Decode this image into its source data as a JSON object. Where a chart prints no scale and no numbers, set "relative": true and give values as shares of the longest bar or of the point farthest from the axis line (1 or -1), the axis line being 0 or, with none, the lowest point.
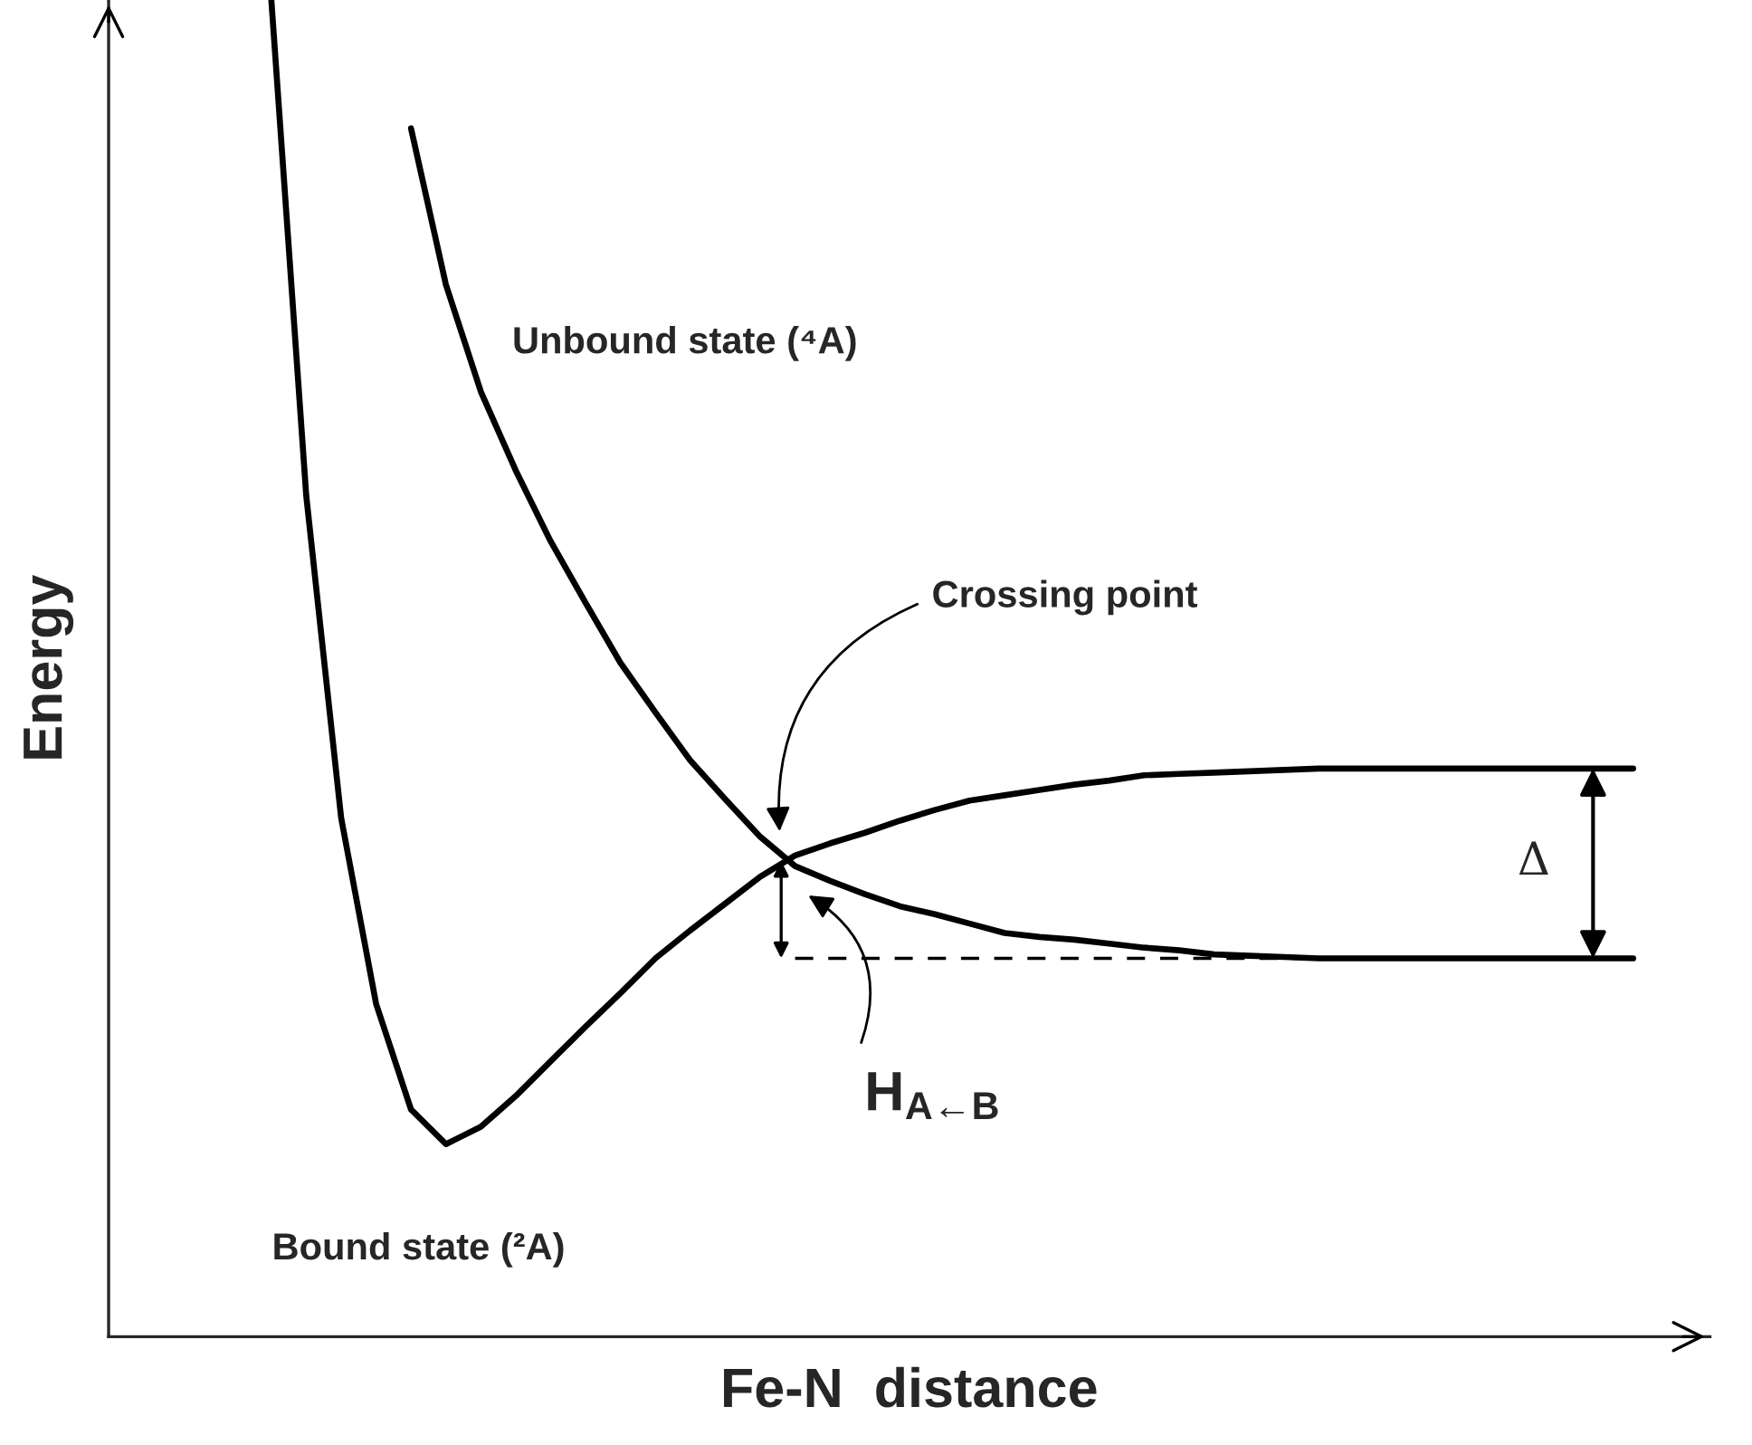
{
  "chart_data": {
    "type": "line",
    "relative": true,
    "xlabel": "Fe-N  distance",
    "ylabel": "Energy",
    "tick_labels": false,
    "marker": "none",
    "categories": [
      null,
      null,
      null,
      null,
      null,
      null,
      null,
      null,
      null,
      null,
      null,
      null,
      null,
      null,
      null,
      null,
      null,
      null,
      null,
      null,
      null,
      null,
      null,
      null,
      null,
      null,
      null,
      null,
      null,
      null,
      null,
      null,
      null,
      null,
      null,
      null,
      null,
      null,
      null,
      null
    ],
    "series": [
      {
        "color": "#000000",
        "line_style": "solid",
        "values": [
          1.0,
          0.629,
          0.388,
          0.249,
          0.17,
          0.144,
          0.157,
          0.18,
          0.206,
          0.232,
          0.257,
          0.283,
          0.304,
          0.324,
          0.344,
          0.36,
          0.369,
          0.377,
          0.386,
          0.394,
          0.401,
          0.405,
          0.409,
          0.413,
          0.416,
          0.42,
          0.421,
          0.422,
          0.423,
          0.424,
          0.425,
          0.425,
          0.425,
          0.425,
          0.425,
          0.425,
          0.425,
          0.425,
          0.425,
          0.425
        ]
      },
      {
        "color": "#000000",
        "line_style": "solid",
        "values": [
          null,
          null,
          null,
          null,
          0.904,
          0.787,
          0.707,
          0.648,
          0.595,
          0.549,
          0.504,
          0.467,
          0.431,
          0.402,
          0.374,
          0.352,
          0.341,
          0.331,
          0.322,
          0.316,
          0.309,
          0.302,
          0.299,
          0.297,
          0.294,
          0.291,
          0.289,
          0.286,
          0.285,
          0.284,
          0.283,
          0.283,
          0.283,
          0.283,
          0.283,
          0.283,
          0.283,
          0.283,
          0.283,
          0.283
        ]
      },
      {
        "color": "#000000",
        "line_style": "dashed",
        "values": [
          null,
          null,
          null,
          null,
          null,
          null,
          null,
          null,
          null,
          null,
          null,
          null,
          null,
          null,
          null,
          0.283,
          0.283,
          0.283,
          0.283,
          0.283,
          0.283,
          0.283,
          0.283,
          0.283,
          0.283,
          0.283,
          0.283,
          0.283,
          0.283,
          0.283,
          0.283,
          0.283,
          0.283,
          0.283,
          0.283,
          0.283,
          0.283,
          0.283,
          0.283,
          0.283
        ]
      }
    ],
    "annotations": [
      "Unbound state (⁴A)",
      "Bound state (²A)",
      "Crossing point",
      "H$_{A←B}$",
      "Δ"
    ]
  }
}
